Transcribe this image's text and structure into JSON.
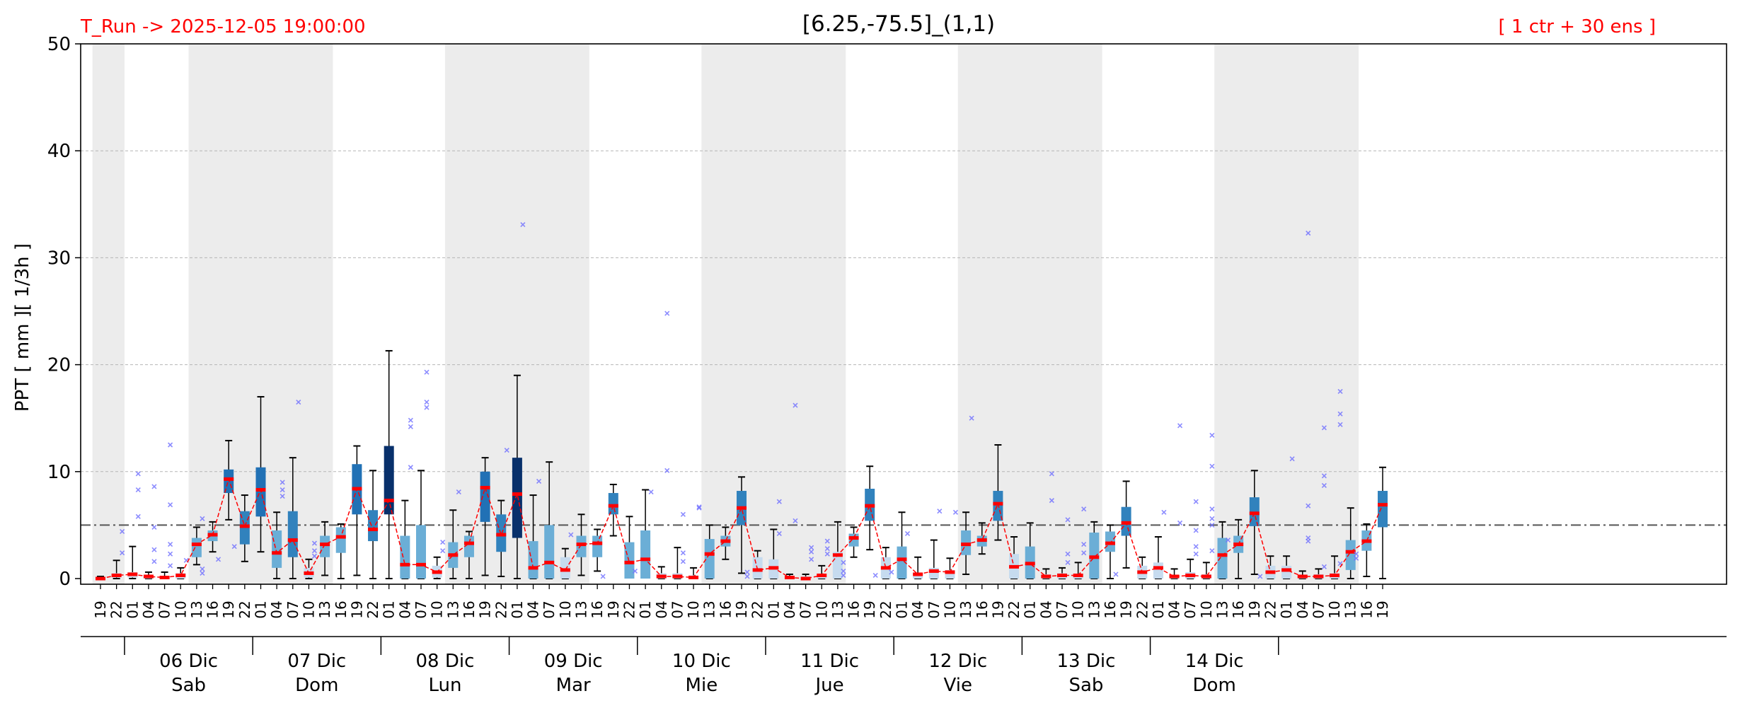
{
  "header": {
    "run_label": "T_Run -> 2025-12-05  19:00:00",
    "title": "[6.25,-75.5]_(1,1)",
    "ensemble_label": "[ 1 ctr + 30 ens ]"
  },
  "chart_data": {
    "type": "box",
    "ylabel": "PPT  [ mm ][ 1/3h ]",
    "ylim": [
      0,
      50
    ],
    "yticks": [
      0,
      10,
      20,
      30,
      40,
      50
    ],
    "grid": true,
    "threshold": 5,
    "colors": {
      "header_text": "#ff0000",
      "median_line": "#ff0000",
      "threshold_line": "#555555",
      "outlier": "#6f6fff",
      "night_shade": "#ececec",
      "box_light": "#c6dbef",
      "box_mid": "#6baed6",
      "box_strong": "#2171b5",
      "box_dark": "#08306b"
    },
    "x_hours": [
      "19",
      "22",
      "01",
      "04",
      "07",
      "10",
      "13",
      "16",
      "19",
      "22",
      "01",
      "04",
      "07",
      "10",
      "13",
      "16",
      "19",
      "22",
      "01",
      "04",
      "07",
      "10",
      "13",
      "16",
      "19",
      "22",
      "01",
      "04",
      "07",
      "10",
      "13",
      "16",
      "19",
      "22",
      "01",
      "04",
      "07",
      "10",
      "13",
      "16",
      "19",
      "22",
      "01",
      "04",
      "07",
      "10",
      "13",
      "16",
      "19",
      "22",
      "01",
      "04",
      "07",
      "10",
      "13",
      "16",
      "19",
      "22",
      "01",
      "04",
      "07",
      "10",
      "13",
      "16",
      "19",
      "22",
      "01",
      "04",
      "07",
      "10",
      "13",
      "16",
      "19",
      "22",
      "01",
      "04",
      "07",
      "10",
      "13",
      "16",
      "19"
    ],
    "days": [
      {
        "date": "06 Dic",
        "weekday": "Sab"
      },
      {
        "date": "07 Dic",
        "weekday": "Dom"
      },
      {
        "date": "08 Dic",
        "weekday": "Lun"
      },
      {
        "date": "09 Dic",
        "weekday": "Mar"
      },
      {
        "date": "10 Dic",
        "weekday": "Mie"
      },
      {
        "date": "11 Dic",
        "weekday": "Jue"
      },
      {
        "date": "12 Dic",
        "weekday": "Vie"
      },
      {
        "date": "13 Dic",
        "weekday": "Sab"
      },
      {
        "date": "14 Dic",
        "weekday": "Dom"
      }
    ],
    "series": [
      {
        "values": [
          0.0,
          0.3,
          0.4,
          0.2,
          0.1,
          0.3,
          3.2,
          4.1,
          9.3,
          4.9,
          8.3,
          2.4,
          3.6,
          0.5,
          3.2,
          3.9,
          8.4,
          4.6,
          7.3,
          1.3,
          1.3,
          0.6,
          2.2,
          3.3,
          8.5,
          4.1,
          7.9,
          1.0,
          1.5,
          0.8,
          3.2,
          3.3,
          6.8,
          1.5,
          1.8,
          0.2,
          0.2,
          0.1,
          2.3,
          3.5,
          6.6,
          0.8,
          1.0,
          0.1,
          0.0,
          0.3,
          2.2,
          3.8,
          6.8,
          1.0,
          1.8,
          0.4,
          0.7,
          0.6,
          3.2,
          3.6,
          7.0,
          1.1,
          1.4,
          0.2,
          0.3,
          0.3,
          2.0,
          3.3,
          5.2,
          0.6,
          1.0,
          0.2,
          0.3,
          0.2,
          2.2,
          3.2,
          6.1,
          0.6,
          0.8,
          0.2,
          0.2,
          0.3,
          2.5,
          3.5,
          6.9
        ]
      }
    ],
    "box_q1": [
      0,
      0.1,
      0.1,
      0.0,
      0.0,
      0.0,
      2.0,
      3.5,
      8.0,
      3.2,
      5.8,
      1.0,
      2.0,
      0.1,
      2.0,
      2.4,
      6.0,
      3.5,
      6.0,
      0.0,
      0.0,
      0.1,
      1.0,
      2.0,
      5.3,
      2.5,
      3.8,
      0.0,
      0.0,
      0.0,
      2.0,
      2.0,
      6.0,
      0.0,
      0.0,
      0.0,
      0.0,
      0.0,
      0.0,
      3.0,
      5.0,
      0.0,
      0.0,
      0.0,
      0.0,
      0.0,
      0.0,
      3.0,
      5.4,
      0.0,
      0.0,
      0.0,
      0.0,
      0.0,
      2.2,
      3.0,
      5.4,
      0.0,
      0.0,
      0.0,
      0.0,
      0.0,
      0.0,
      2.5,
      4.0,
      0.0,
      0.0,
      0.0,
      0.0,
      0.0,
      0.0,
      2.4,
      4.9,
      0.0,
      0.0,
      0.0,
      0.0,
      0.0,
      0.8,
      2.6,
      4.8
    ],
    "box_q3": [
      0.1,
      0.5,
      0.6,
      0.3,
      0.2,
      0.5,
      3.8,
      4.5,
      10.2,
      6.3,
      10.4,
      4.5,
      6.3,
      1.0,
      4.0,
      4.8,
      10.7,
      6.4,
      12.4,
      4.0,
      5.0,
      1.2,
      3.4,
      4.0,
      10.0,
      6.0,
      11.3,
      3.5,
      5.0,
      2.0,
      4.0,
      4.0,
      8.0,
      3.4,
      4.5,
      0.5,
      0.5,
      0.3,
      3.7,
      4.0,
      8.2,
      2.0,
      1.8,
      0.2,
      0.2,
      0.4,
      2.5,
      4.2,
      8.4,
      2.0,
      3.0,
      0.5,
      1.0,
      0.8,
      4.5,
      4.0,
      8.2,
      2.3,
      3.0,
      0.4,
      0.5,
      0.4,
      4.3,
      4.4,
      6.7,
      1.2,
      1.5,
      0.3,
      0.6,
      0.4,
      3.8,
      4.0,
      7.6,
      1.2,
      1.2,
      0.3,
      0.4,
      0.5,
      3.6,
      4.5,
      8.2
    ],
    "whisker_low": [
      0,
      0,
      0,
      0,
      0,
      0,
      1.3,
      2.5,
      5.5,
      1.6,
      2.5,
      0.0,
      0.0,
      0.0,
      0.3,
      0.0,
      0.3,
      0.0,
      0.0,
      0.0,
      0.0,
      0.0,
      0.0,
      0.0,
      0.3,
      0.2,
      0.0,
      0.0,
      0.0,
      0.0,
      0.3,
      0.7,
      4.0,
      0.3,
      0.4,
      0.0,
      0.0,
      0.0,
      0.0,
      1.8,
      0.5,
      0.0,
      0.0,
      0.0,
      0.0,
      0.0,
      0.0,
      2.0,
      2.7,
      0.0,
      0.0,
      0.0,
      0.0,
      0.0,
      0.4,
      2.3,
      3.6,
      0.0,
      0.0,
      0.0,
      0.0,
      0.0,
      0.0,
      0.0,
      1.0,
      0.0,
      0.0,
      0.0,
      0.0,
      0.0,
      0.0,
      0.0,
      0.4,
      0.0,
      0.0,
      0.0,
      0.0,
      0.0,
      0.0,
      0.2,
      0.0
    ],
    "whisker_high": [
      0.2,
      1.7,
      3.0,
      0.6,
      0.6,
      1.0,
      4.8,
      5.3,
      12.9,
      7.8,
      17.0,
      6.2,
      11.3,
      1.8,
      5.3,
      5.1,
      12.4,
      10.1,
      21.3,
      7.3,
      10.1,
      2.0,
      6.4,
      4.4,
      11.3,
      7.3,
      19.0,
      7.8,
      10.9,
      2.8,
      6.0,
      4.6,
      8.8,
      5.8,
      8.3,
      1.1,
      2.9,
      1.0,
      5.0,
      4.8,
      9.5,
      2.6,
      4.6,
      0.4,
      0.4,
      1.2,
      5.3,
      4.8,
      10.5,
      2.9,
      6.2,
      2.0,
      3.6,
      1.9,
      6.2,
      5.2,
      12.5,
      3.9,
      5.2,
      0.9,
      1.0,
      1.5,
      5.3,
      5.0,
      9.1,
      2.0,
      3.9,
      0.9,
      1.8,
      1.5,
      5.3,
      5.5,
      10.1,
      2.1,
      2.1,
      0.7,
      0.9,
      2.1,
      6.6,
      5.1,
      10.4
    ],
    "outliers": [
      {
        "x": 1,
        "y": [
          2.4,
          4.4
        ]
      },
      {
        "x": 2,
        "y": [
          5.8,
          8.3,
          9.8
        ]
      },
      {
        "x": 3,
        "y": [
          1.6,
          2.7,
          4.8,
          8.6
        ]
      },
      {
        "x": 4,
        "y": [
          1.2,
          2.3,
          3.2,
          6.9,
          12.5
        ]
      },
      {
        "x": 5,
        "y": [
          1.7
        ]
      },
      {
        "x": 6,
        "y": [
          0.5,
          0.9,
          5.6
        ]
      },
      {
        "x": 7,
        "y": [
          1.8
        ]
      },
      {
        "x": 8,
        "y": [
          3.0
        ]
      },
      {
        "x": 11,
        "y": [
          7.7,
          8.3,
          9.0
        ]
      },
      {
        "x": 12,
        "y": [
          16.5
        ]
      },
      {
        "x": 13,
        "y": [
          2.1,
          2.6,
          3.3
        ]
      },
      {
        "x": 19,
        "y": [
          10.4,
          14.2,
          14.8
        ]
      },
      {
        "x": 20,
        "y": [
          16.0,
          16.5,
          19.3
        ]
      },
      {
        "x": 21,
        "y": [
          2.6,
          3.4
        ]
      },
      {
        "x": 22,
        "y": [
          8.1
        ]
      },
      {
        "x": 25,
        "y": [
          12.0
        ]
      },
      {
        "x": 26,
        "y": [
          33.1
        ]
      },
      {
        "x": 27,
        "y": [
          9.1
        ]
      },
      {
        "x": 29,
        "y": [
          4.1
        ]
      },
      {
        "x": 31,
        "y": [
          0.2
        ]
      },
      {
        "x": 33,
        "y": [
          0.7
        ]
      },
      {
        "x": 34,
        "y": [
          8.1
        ]
      },
      {
        "x": 35,
        "y": [
          10.1,
          24.8
        ]
      },
      {
        "x": 36,
        "y": [
          1.6,
          2.4,
          6.0
        ]
      },
      {
        "x": 37,
        "y": [
          6.6,
          6.7
        ]
      },
      {
        "x": 40,
        "y": [
          0.2,
          0.6
        ]
      },
      {
        "x": 42,
        "y": [
          4.2,
          7.2
        ]
      },
      {
        "x": 43,
        "y": [
          5.4,
          16.2
        ]
      },
      {
        "x": 44,
        "y": [
          1.8,
          2.5,
          2.9
        ]
      },
      {
        "x": 45,
        "y": [
          2.3,
          2.8,
          3.5
        ]
      },
      {
        "x": 46,
        "y": [
          0.3,
          0.7,
          1.5
        ]
      },
      {
        "x": 48,
        "y": [
          0.3
        ]
      },
      {
        "x": 49,
        "y": [
          0.6
        ]
      },
      {
        "x": 50,
        "y": [
          4.2
        ]
      },
      {
        "x": 52,
        "y": [
          6.3
        ]
      },
      {
        "x": 53,
        "y": [
          6.2
        ]
      },
      {
        "x": 54,
        "y": [
          15.0
        ]
      },
      {
        "x": 59,
        "y": [
          7.3,
          9.8
        ]
      },
      {
        "x": 60,
        "y": [
          1.5,
          2.3,
          5.5
        ]
      },
      {
        "x": 61,
        "y": [
          2.4,
          3.2,
          6.5
        ]
      },
      {
        "x": 63,
        "y": [
          0.4
        ]
      },
      {
        "x": 66,
        "y": [
          6.2
        ]
      },
      {
        "x": 67,
        "y": [
          5.2,
          14.3
        ]
      },
      {
        "x": 68,
        "y": [
          2.3,
          3.0,
          4.5,
          7.2
        ]
      },
      {
        "x": 69,
        "y": [
          2.6,
          5.0,
          5.6,
          6.5,
          10.5,
          13.4
        ]
      },
      {
        "x": 70,
        "y": [
          3.6
        ]
      },
      {
        "x": 72,
        "y": [
          0.2
        ]
      },
      {
        "x": 74,
        "y": [
          11.2
        ]
      },
      {
        "x": 75,
        "y": [
          3.5,
          3.8,
          6.8,
          32.3
        ]
      },
      {
        "x": 76,
        "y": [
          1.1,
          8.7,
          9.6,
          14.1
        ]
      },
      {
        "x": 77,
        "y": [
          1.4,
          14.4,
          15.4,
          17.5
        ]
      },
      {
        "x": 78,
        "y": [
          1.9,
          2.3
        ]
      }
    ]
  }
}
